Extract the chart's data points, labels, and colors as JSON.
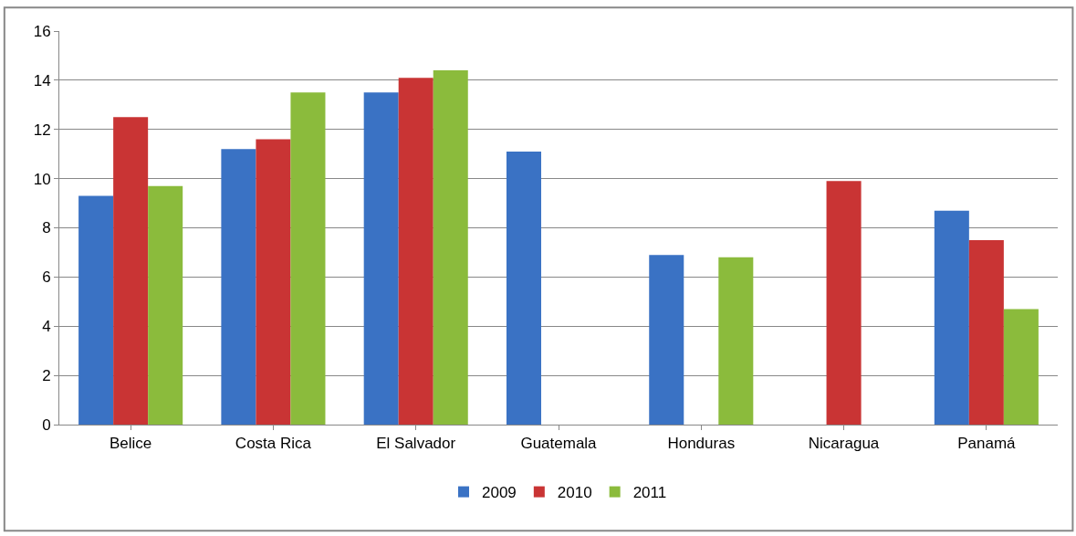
{
  "chart_data": {
    "type": "bar",
    "categories": [
      "Belice",
      "Costa Rica",
      "El Salvador",
      "Guatemala",
      "Honduras",
      "Nicaragua",
      "Panamá"
    ],
    "series": [
      {
        "name": "2009",
        "color": "#3a72c4",
        "values": [
          9.3,
          11.2,
          13.5,
          11.1,
          6.9,
          null,
          8.7
        ]
      },
      {
        "name": "2010",
        "color": "#c93434",
        "values": [
          12.5,
          11.6,
          14.1,
          null,
          null,
          9.9,
          7.5
        ]
      },
      {
        "name": "2011",
        "color": "#8bbb3c",
        "values": [
          9.7,
          13.5,
          14.4,
          null,
          6.8,
          null,
          4.7
        ]
      }
    ],
    "ylim": [
      0,
      16
    ],
    "yticks": [
      0,
      2,
      4,
      6,
      8,
      10,
      12,
      14,
      16
    ],
    "grid": "y",
    "legend": "bottom"
  }
}
